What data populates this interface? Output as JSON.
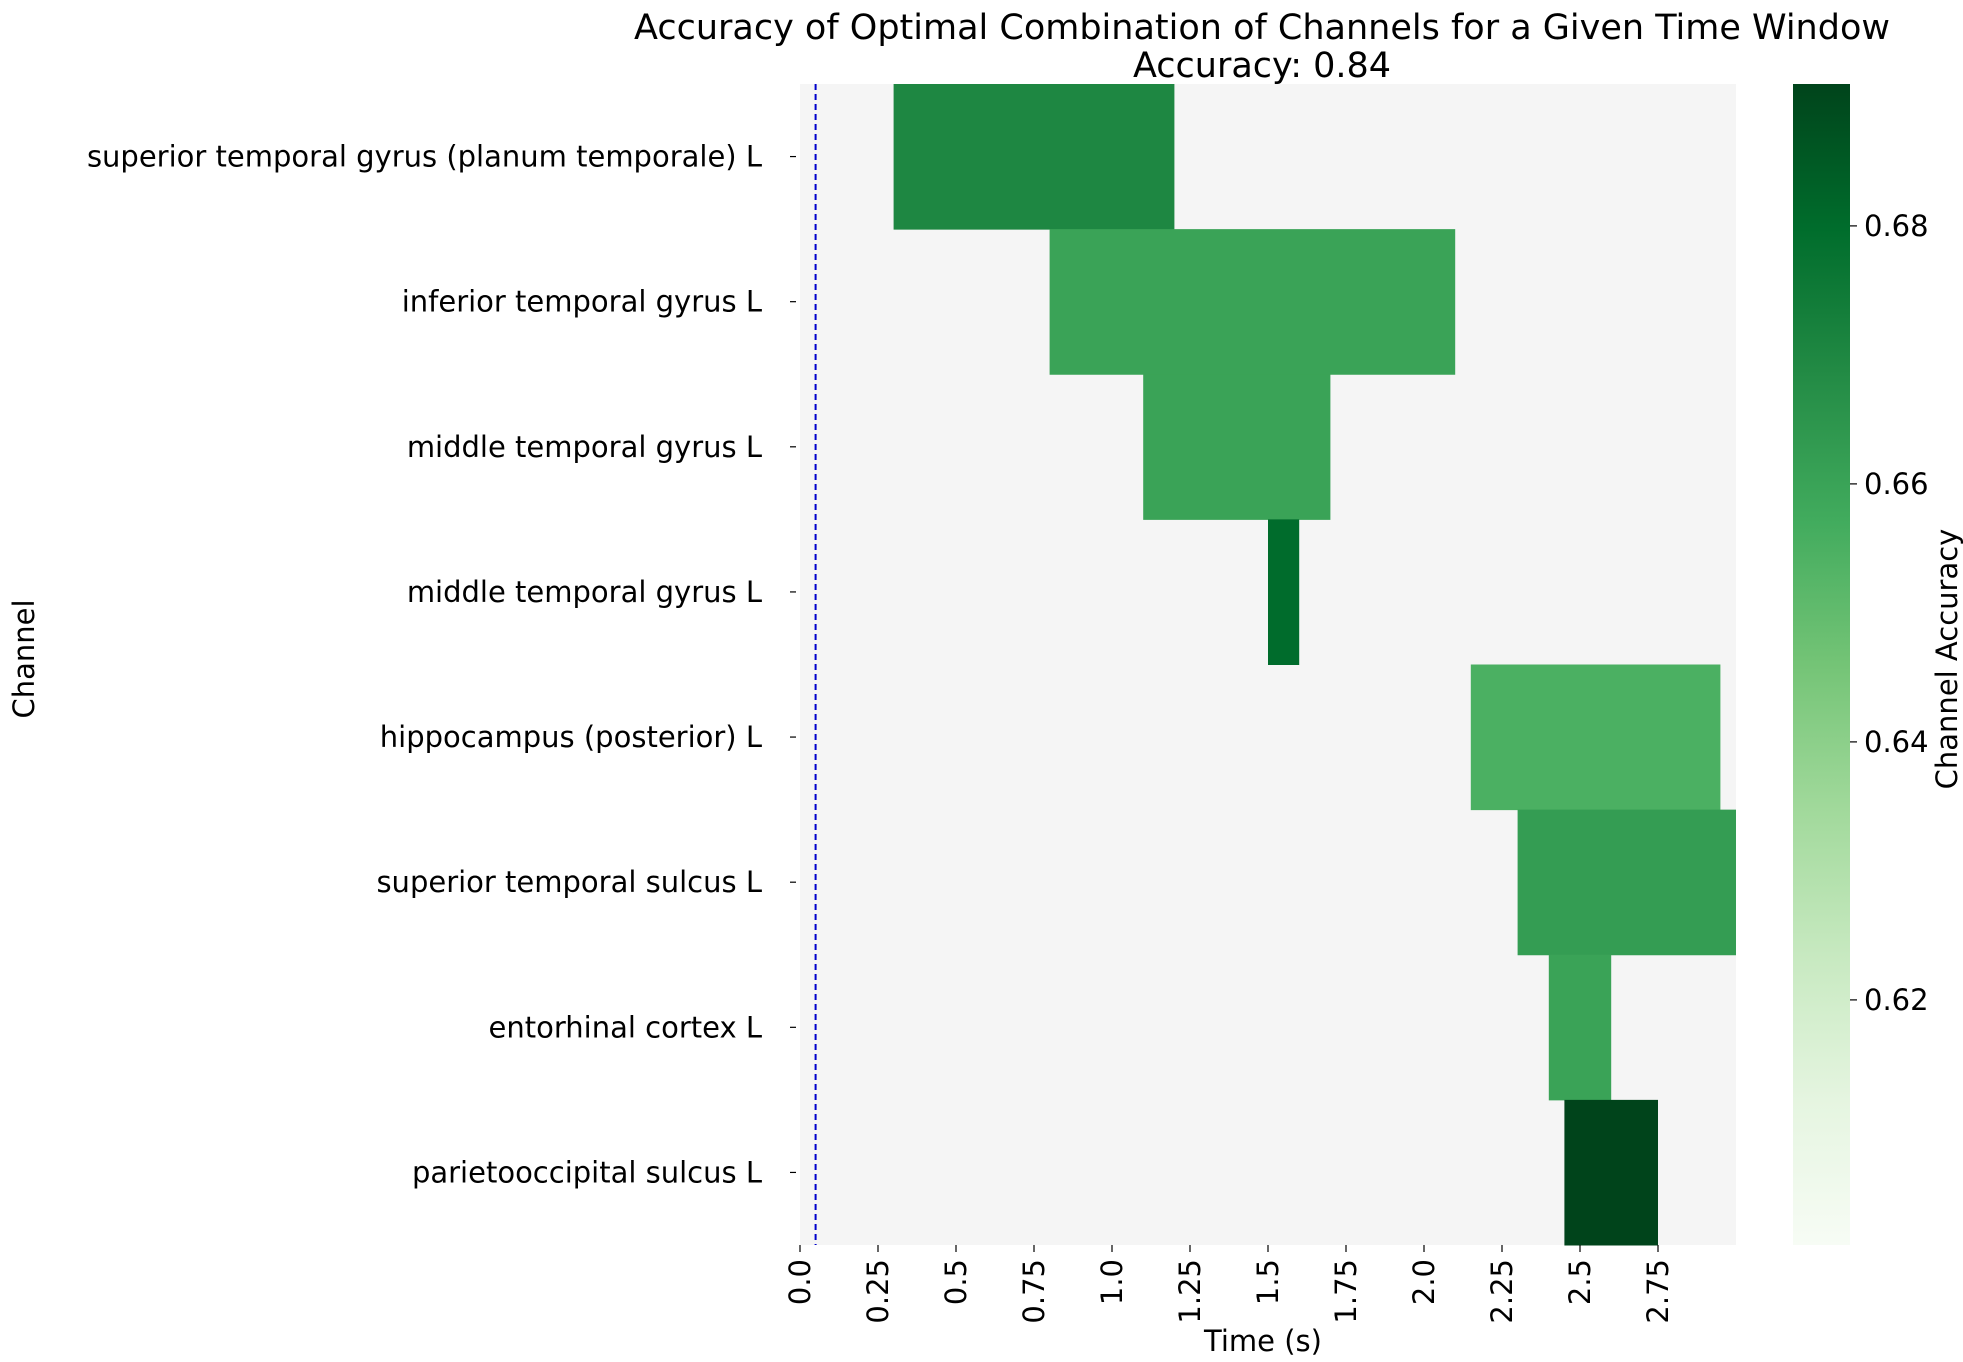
{
  "chart_data": {
    "type": "heatmap",
    "title": "Accuracy of Optimal Combination of Channels for a Given Time Window",
    "subtitle": "Accuracy: 0.84",
    "xlabel": "Time (s)",
    "ylabel": "Channel",
    "colorbar_label": "Channel Accuracy",
    "xlim": [
      0,
      3.0
    ],
    "x_ticks": [
      0.0,
      0.25,
      0.5,
      0.75,
      1.0,
      1.25,
      1.5,
      1.75,
      2.0,
      2.25,
      2.5,
      2.75
    ],
    "x_tick_labels": [
      "0.0",
      "0.25",
      "0.5",
      "0.75",
      "1.0",
      "1.25",
      "1.5",
      "1.75",
      "2.0",
      "2.25",
      "2.5",
      "2.75"
    ],
    "colorbar_range": [
      0.601,
      0.691
    ],
    "colorbar_ticks": [
      0.62,
      0.64,
      0.66,
      0.68
    ],
    "colorbar_tick_labels": [
      "0.62",
      "0.64",
      "0.66",
      "0.68"
    ],
    "reference_line_time": 0.05,
    "channels": [
      "superior temporal gyrus (planum temporale) L",
      "inferior temporal gyrus L",
      "middle temporal gyrus L",
      "middle temporal gyrus L",
      "hippocampus (posterior) L",
      "superior temporal sulcus L",
      "entorhinal cortex L",
      "parietooccipital sulcus L"
    ],
    "windows": [
      {
        "channel_index": 0,
        "start": 0.3,
        "end": 1.2,
        "accuracy": 0.67
      },
      {
        "channel_index": 1,
        "start": 0.8,
        "end": 2.1,
        "accuracy": 0.66
      },
      {
        "channel_index": 2,
        "start": 1.1,
        "end": 1.7,
        "accuracy": 0.66
      },
      {
        "channel_index": 3,
        "start": 1.5,
        "end": 1.6,
        "accuracy": 0.68
      },
      {
        "channel_index": 4,
        "start": 2.15,
        "end": 2.95,
        "accuracy": 0.655
      },
      {
        "channel_index": 5,
        "start": 2.3,
        "end": 3.0,
        "accuracy": 0.662
      },
      {
        "channel_index": 6,
        "start": 2.4,
        "end": 2.6,
        "accuracy": 0.66
      },
      {
        "channel_index": 7,
        "start": 2.45,
        "end": 2.75,
        "accuracy": 0.691
      }
    ],
    "background_color": "#f5f5f5",
    "reference_line_color": "#0000cc",
    "colormap": "Greens"
  }
}
